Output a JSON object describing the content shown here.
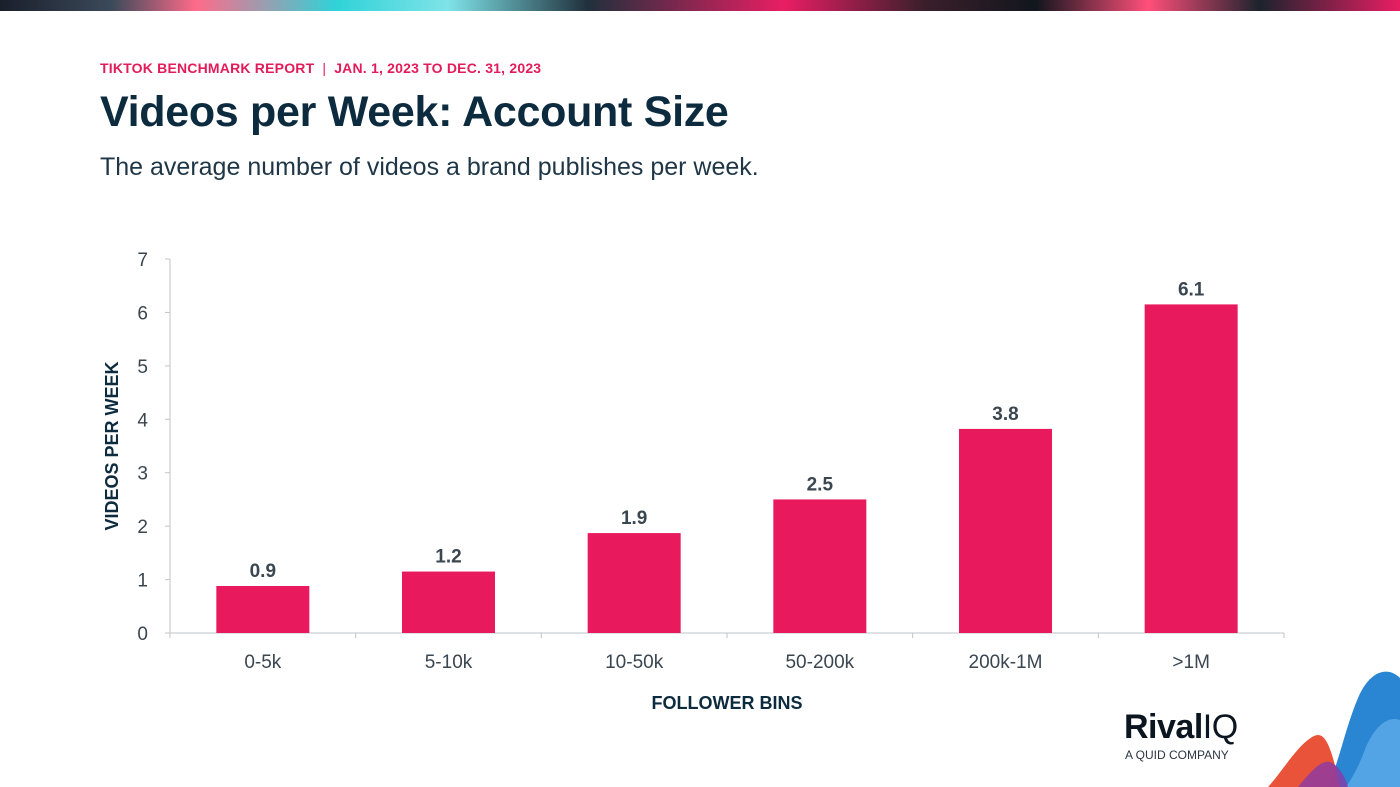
{
  "header": {
    "eyebrow_left": "TIKTOK BENCHMARK REPORT",
    "eyebrow_sep": "|",
    "eyebrow_right": "JAN. 1, 2023 TO DEC. 31, 2023",
    "title": "Videos per Week: Account Size",
    "subtitle": "The average number of videos a brand publishes per week."
  },
  "colors": {
    "bar": "#e8195c",
    "axis": "#bfc5ca",
    "label": "#3a4650",
    "title": "#0d2b3e"
  },
  "chart_data": {
    "type": "bar",
    "title": "Videos per Week: Account Size",
    "xlabel": "FOLLOWER BINS",
    "ylabel": "VIDEOS PER WEEK",
    "categories": [
      "0-5k",
      "5-10k",
      "10-50k",
      "50-200k",
      "200k-1M",
      ">1M"
    ],
    "values": [
      0.9,
      1.2,
      1.9,
      2.5,
      3.8,
      6.1
    ],
    "plot_values": [
      0.88,
      1.15,
      1.87,
      2.5,
      3.82,
      6.15
    ],
    "ylim": [
      0,
      7
    ],
    "yticks": [
      0,
      1,
      2,
      3,
      4,
      5,
      6,
      7
    ],
    "grid": false,
    "legend": "none"
  },
  "logo": {
    "word_bold": "Rival",
    "word_light": "IQ",
    "tagline": "A QUID COMPANY"
  }
}
